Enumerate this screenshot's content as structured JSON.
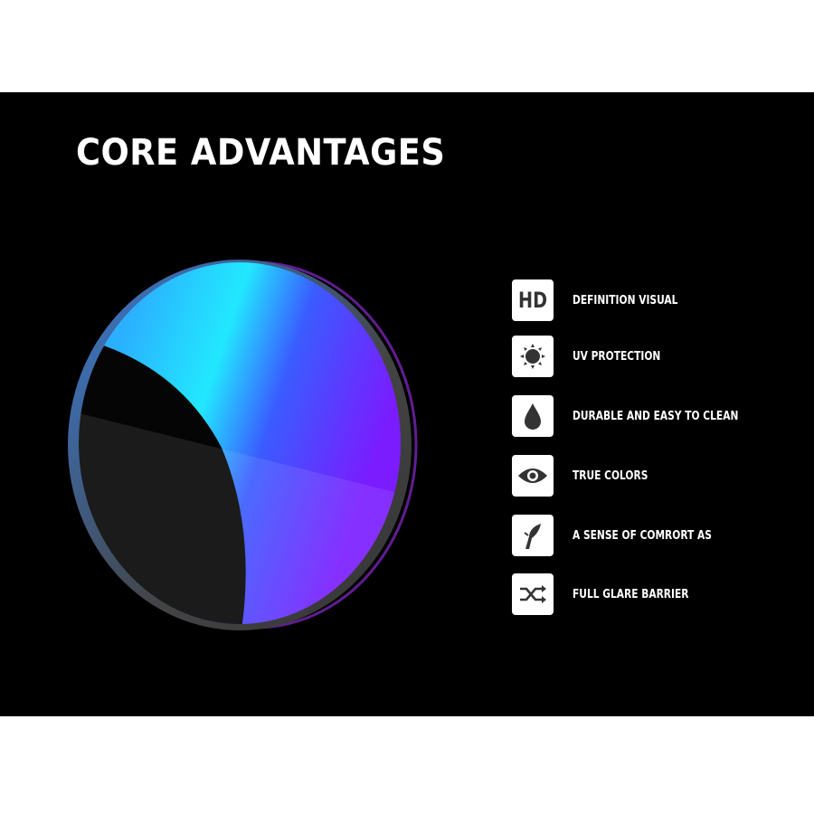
{
  "title": "CORE ADVANTAGES",
  "features": [
    {
      "icon": "hd-icon",
      "icon_text": "HD",
      "label": "DEFINITION VISUAL"
    },
    {
      "icon": "sun-icon",
      "label": "UV PROTECTION"
    },
    {
      "icon": "water-drop-icon",
      "label": "DURABLE AND EASY TO CLEAN"
    },
    {
      "icon": "eye-icon",
      "label": "TRUE COLORS"
    },
    {
      "icon": "feather-icon",
      "label": "A SENSE OF COMRORT AS"
    },
    {
      "icon": "shuffle-icon",
      "label": "FULL GLARE BARRIER"
    }
  ],
  "colors": {
    "background": "#000000",
    "icon_box": "#ffffff",
    "icon_glyph": "#333333",
    "lens_cyan": "#22e0ff",
    "lens_violet": "#6a1cff"
  }
}
